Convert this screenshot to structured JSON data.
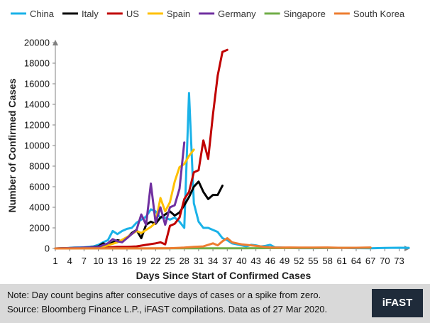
{
  "chart_data": {
    "type": "line",
    "title": "",
    "xlabel": "Days Since Start of Confirmed Cases",
    "ylabel": "Number of Confirmed Cases",
    "xlim": [
      1,
      75
    ],
    "ylim": [
      0,
      20000
    ],
    "x_ticks": [
      1,
      4,
      7,
      10,
      13,
      16,
      19,
      22,
      25,
      28,
      31,
      34,
      37,
      40,
      43,
      46,
      49,
      52,
      55,
      58,
      61,
      64,
      67,
      70,
      73
    ],
    "y_ticks": [
      0,
      2000,
      4000,
      6000,
      8000,
      10000,
      12000,
      14000,
      16000,
      18000,
      20000
    ],
    "grid": false,
    "legend_position": "top",
    "series": [
      {
        "name": "China",
        "color": "#1ab2e8",
        "x": [
          1,
          3,
          5,
          7,
          9,
          10,
          11,
          12,
          13,
          14,
          15,
          16,
          17,
          18,
          19,
          20,
          21,
          22,
          23,
          24,
          25,
          26,
          27,
          28,
          29,
          30,
          31,
          32,
          33,
          34,
          35,
          36,
          37,
          38,
          39,
          40,
          41,
          42,
          43,
          44,
          45,
          46,
          47,
          48,
          50,
          52,
          55,
          58,
          61,
          64,
          67,
          70,
          73,
          75
        ],
        "y": [
          0,
          30,
          80,
          110,
          200,
          350,
          600,
          800,
          1700,
          1400,
          1700,
          1900,
          2000,
          2500,
          2800,
          3100,
          3800,
          3600,
          3000,
          3000,
          2800,
          3000,
          2600,
          2000,
          15100,
          4400,
          2600,
          2000,
          2000,
          1800,
          1600,
          1000,
          800,
          500,
          400,
          300,
          200,
          350,
          300,
          200,
          250,
          350,
          100,
          100,
          50,
          30,
          30,
          40,
          50,
          30,
          20,
          50,
          70,
          60
        ]
      },
      {
        "name": "Italy",
        "color": "#000000",
        "x": [
          1,
          5,
          8,
          10,
          11,
          12,
          13,
          14,
          15,
          16,
          17,
          18,
          19,
          20,
          21,
          22,
          23,
          24,
          25,
          26,
          27,
          28,
          29,
          30,
          31,
          32,
          33,
          34,
          35,
          36
        ],
        "y": [
          0,
          50,
          100,
          200,
          500,
          300,
          600,
          800,
          700,
          1000,
          1500,
          1800,
          1000,
          2300,
          2600,
          2400,
          3000,
          3300,
          3600,
          3200,
          3500,
          4200,
          5000,
          6000,
          6500,
          5500,
          4800,
          5200,
          5200,
          6100
        ]
      },
      {
        "name": "US",
        "color": "#c00000",
        "x": [
          1,
          5,
          8,
          10,
          12,
          14,
          16,
          18,
          20,
          22,
          23,
          24,
          25,
          26,
          27,
          28,
          29,
          30,
          31,
          32,
          33,
          34,
          35,
          36,
          37
        ],
        "y": [
          0,
          30,
          60,
          80,
          100,
          150,
          150,
          200,
          350,
          500,
          600,
          400,
          2200,
          2400,
          3000,
          4800,
          5500,
          7400,
          7600,
          10500,
          8700,
          13000,
          16800,
          19100,
          19300
        ]
      },
      {
        "name": "Spain",
        "color": "#ffc000",
        "x": [
          10,
          12,
          14,
          16,
          17,
          18,
          19,
          20,
          21,
          22,
          23,
          24,
          25,
          26,
          27,
          28,
          29,
          30
        ],
        "y": [
          50,
          300,
          600,
          1100,
          1400,
          1700,
          1500,
          1800,
          2100,
          2500,
          4900,
          3600,
          4500,
          6500,
          7900,
          8200,
          9000,
          9600
        ]
      },
      {
        "name": "Germany",
        "color": "#7030a0",
        "x": [
          1,
          5,
          8,
          10,
          12,
          13,
          14,
          15,
          16,
          17,
          18,
          19,
          20,
          21,
          22,
          23,
          24,
          25,
          26,
          27,
          28
        ],
        "y": [
          0,
          50,
          100,
          150,
          500,
          900,
          700,
          600,
          1000,
          1400,
          1800,
          3300,
          2300,
          6300,
          2500,
          4000,
          2300,
          4000,
          4200,
          5800,
          10300
        ]
      },
      {
        "name": "Singapore",
        "color": "#70ad47",
        "x": [
          1,
          10,
          20,
          30,
          40,
          50,
          60,
          67
        ],
        "y": [
          0,
          5,
          10,
          20,
          20,
          40,
          60,
          70
        ]
      },
      {
        "name": "South Korea",
        "color": "#ed7d31",
        "x": [
          1,
          10,
          20,
          25,
          28,
          30,
          32,
          34,
          35,
          36,
          37,
          38,
          39,
          40,
          42,
          44,
          46,
          48,
          50,
          52,
          55,
          58,
          61,
          64,
          67
        ],
        "y": [
          0,
          5,
          10,
          30,
          80,
          150,
          200,
          500,
          300,
          700,
          1000,
          600,
          500,
          400,
          300,
          200,
          100,
          80,
          100,
          80,
          90,
          100,
          60,
          70,
          100
        ]
      }
    ]
  },
  "footer": {
    "note": "Note: Day count begins after consecutive days of cases or a spike from zero.",
    "source": "Source: Bloomberg Finance L.P., iFAST compilations. Data as of 27 Mar 2020.",
    "brand": "iFAST"
  }
}
